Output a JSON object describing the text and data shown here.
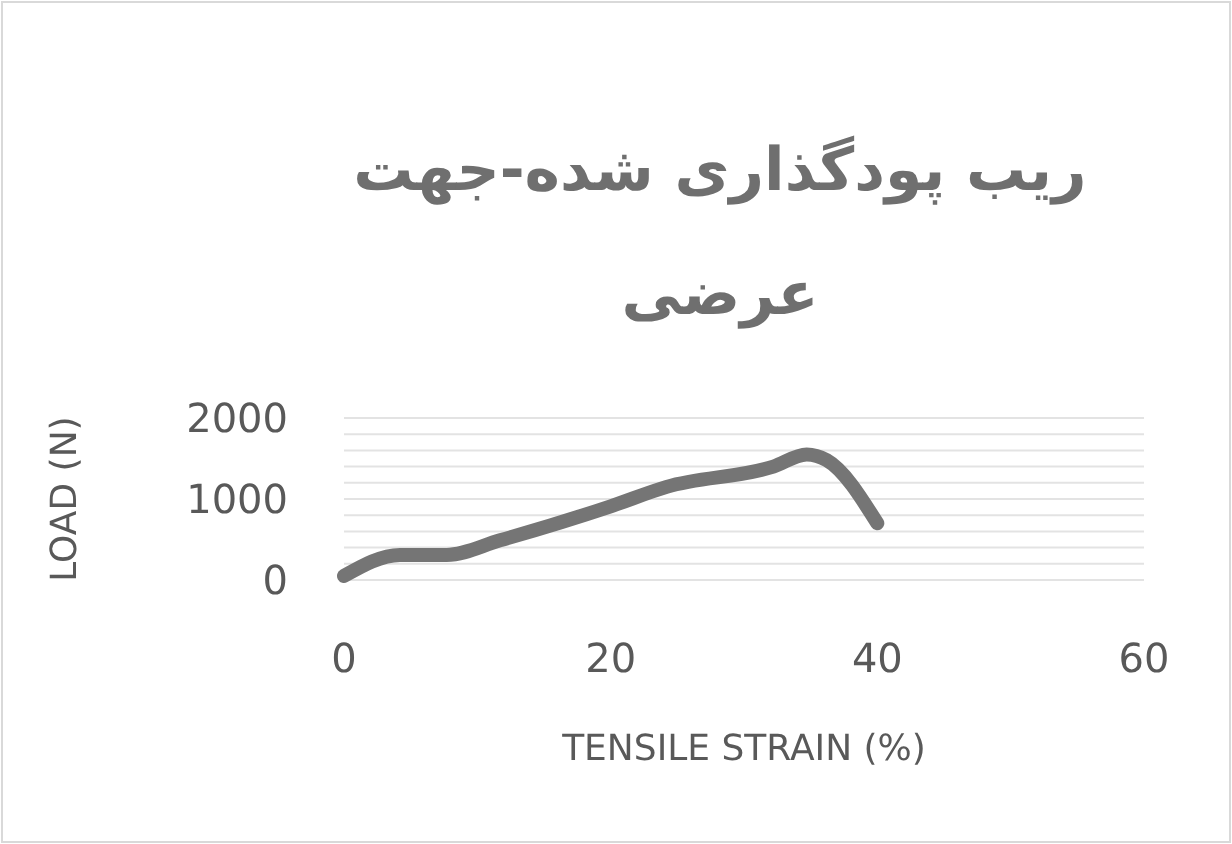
{
  "chart_data": {
    "type": "line",
    "title": "ریب پودگذاری شده-جهت عرضی",
    "xlabel": "TENSILE STRAIN (%)",
    "ylabel": "LOAD (N)",
    "series": [
      {
        "color": "#757575",
        "x": [
          0,
          4.2,
          7.7,
          11.7,
          20,
          24.2,
          32.2,
          34.7,
          36.2,
          40
        ],
        "values": [
          50,
          310,
          310,
          490,
          910,
          1150,
          1400,
          1550,
          1480,
          700
        ]
      }
    ],
    "xlim": [
      0,
      60
    ],
    "xticks": [
      0,
      20,
      40,
      60
    ],
    "ylim": [
      0,
      2000
    ],
    "yticks": [
      0,
      {
        "value": 200,
        "label": null
      },
      {
        "value": 400,
        "label": null
      },
      {
        "value": 600,
        "label": null
      },
      {
        "value": 800,
        "label": null
      },
      1000,
      {
        "value": 1200,
        "label": null
      },
      {
        "value": 1400,
        "label": null
      },
      {
        "value": 1600,
        "label": null
      },
      {
        "value": 1800,
        "label": null
      },
      2000
    ],
    "grid": "y",
    "marker": "none",
    "line_style": "solid"
  }
}
